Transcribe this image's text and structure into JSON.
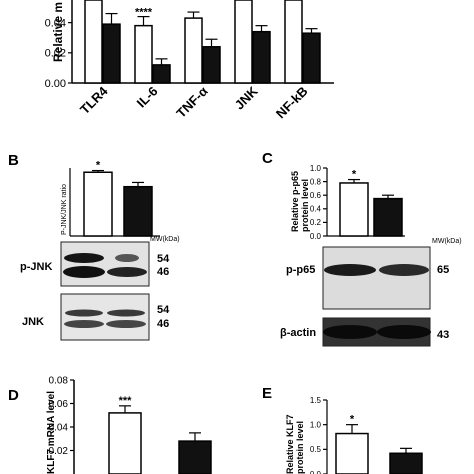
{
  "panel_letters": {
    "b": "B",
    "c": "C",
    "d": "D",
    "e": "E"
  },
  "markers": {
    "mw": "MW(kDa)"
  },
  "blots": {
    "pjnk": {
      "label": "p-JNK",
      "mw_top": "54",
      "mw_bottom": "46"
    },
    "jnk": {
      "label": "JNK",
      "mw_top": "54",
      "mw_bottom": "46"
    },
    "pp65": {
      "label": "p-p65",
      "mw": "65"
    },
    "actin": {
      "label": "β-actin",
      "mw": "43"
    }
  },
  "chart_data": [
    {
      "id": "A",
      "type": "bar",
      "ylabel": "Relative m",
      "categories": [
        "TLR4",
        "IL-6",
        "TNF-α",
        "JNK",
        "NF-kB"
      ],
      "yticks": [
        "0.00",
        "0.02",
        "0.04"
      ],
      "ylim": [
        0,
        0.055
      ],
      "series": [
        {
          "color": "#ffffff",
          "values": [
            0.055,
            0.038,
            0.043,
            0.055,
            0.055
          ],
          "errors": [
            0.0,
            0.006,
            0.004,
            0.0,
            0.0
          ]
        },
        {
          "color": "#111111",
          "values": [
            0.039,
            0.012,
            0.024,
            0.034,
            0.033
          ],
          "errors": [
            0.007,
            0.004,
            0.005,
            0.004,
            0.003
          ]
        }
      ],
      "annotations": [
        {
          "category": "IL-6",
          "text": "****"
        }
      ]
    },
    {
      "id": "B",
      "type": "bar",
      "ylabel": "P-JNK/JNK ratio",
      "ylim": [
        0,
        0.8
      ],
      "series": [
        {
          "color": "#ffffff",
          "values": [
            0.75
          ],
          "errors": [
            0.02
          ]
        },
        {
          "color": "#111111",
          "values": [
            0.58
          ],
          "errors": [
            0.05
          ]
        }
      ],
      "annotations": [
        {
          "text": "*"
        }
      ]
    },
    {
      "id": "C",
      "type": "bar",
      "ylabel": [
        "Relative p-p65",
        "protein level"
      ],
      "yticks": [
        "0.0",
        "0.2",
        "0.4",
        "0.6",
        "0.8",
        "1.0"
      ],
      "ylim": [
        0,
        1.0
      ],
      "series": [
        {
          "color": "#ffffff",
          "values": [
            0.78
          ],
          "errors": [
            0.05
          ]
        },
        {
          "color": "#111111",
          "values": [
            0.55
          ],
          "errors": [
            0.05
          ]
        }
      ],
      "annotations": [
        {
          "text": "*"
        }
      ]
    },
    {
      "id": "D",
      "type": "bar",
      "ylabel": "KLF7 mRNA level",
      "yticks": [
        "0.02",
        "0.04",
        "0.06",
        "0.08"
      ],
      "ylim": [
        0.0,
        0.08
      ],
      "series": [
        {
          "color": "#ffffff",
          "values": [
            0.052
          ],
          "errors": [
            0.006
          ]
        },
        {
          "color": "#111111",
          "values": [
            0.028
          ],
          "errors": [
            0.007
          ]
        }
      ],
      "annotations": [
        {
          "text": "***"
        }
      ]
    },
    {
      "id": "E",
      "type": "bar",
      "ylabel": [
        "Relative KLF7",
        "protein level"
      ],
      "yticks": [
        "0.0",
        "0.5",
        "1.0",
        "1.5"
      ],
      "ylim": [
        0,
        1.5
      ],
      "series": [
        {
          "color": "#ffffff",
          "values": [
            0.82
          ],
          "errors": [
            0.18
          ]
        },
        {
          "color": "#111111",
          "values": [
            0.42
          ],
          "errors": [
            0.1
          ]
        }
      ],
      "annotations": [
        {
          "text": "*"
        }
      ]
    }
  ]
}
